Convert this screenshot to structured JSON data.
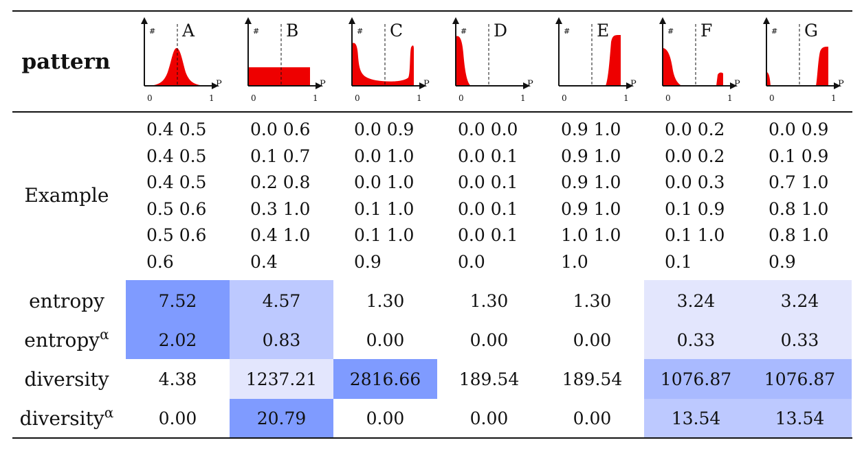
{
  "table": {
    "corner_label": "pattern",
    "axis": {
      "y_label": "#",
      "x_label": "P",
      "x_min": "0",
      "x_max": "1"
    },
    "patterns": [
      {
        "letter": "A",
        "shape": "centered peak"
      },
      {
        "letter": "B",
        "shape": "uniform"
      },
      {
        "letter": "C",
        "shape": "u-shape"
      },
      {
        "letter": "D",
        "shape": "low"
      },
      {
        "letter": "E",
        "shape": "high"
      },
      {
        "letter": "F",
        "shape": "mostly low"
      },
      {
        "letter": "G",
        "shape": "mostly high"
      }
    ],
    "example_label": "Example",
    "examples": [
      [
        "0.4 0.5",
        "0.4 0.5",
        "0.4 0.5",
        "0.5 0.6",
        "0.5 0.6",
        "0.6"
      ],
      [
        "0.0 0.6",
        "0.1 0.7",
        "0.2 0.8",
        "0.3 1.0",
        "0.4 1.0",
        "0.4"
      ],
      [
        "0.0 0.9",
        "0.0 1.0",
        "0.0 1.0",
        "0.1 1.0",
        "0.1 1.0",
        "0.9"
      ],
      [
        "0.0 0.0",
        "0.0 0.1",
        "0.0 0.1",
        "0.0 0.1",
        "0.0 0.1",
        "0.0"
      ],
      [
        "0.9 1.0",
        "0.9 1.0",
        "0.9 1.0",
        "0.9 1.0",
        "1.0 1.0",
        "1.0"
      ],
      [
        "0.0 0.2",
        "0.0 0.2",
        "0.0 0.3",
        "0.1 0.9",
        "0.1 1.0",
        "0.1"
      ],
      [
        "0.0 0.9",
        "0.1 0.9",
        "0.7 1.0",
        "0.8 1.0",
        "0.8 1.0",
        "0.9"
      ]
    ],
    "metrics": [
      {
        "name": "entropy",
        "superscript": "",
        "values": [
          "7.52",
          "4.57",
          "1.30",
          "1.30",
          "1.30",
          "3.24",
          "3.24"
        ]
      },
      {
        "name": "entropy",
        "superscript": "α",
        "values": [
          "2.02",
          "0.83",
          "0.00",
          "0.00",
          "0.00",
          "0.33",
          "0.33"
        ]
      },
      {
        "name": "diversity",
        "superscript": "",
        "values": [
          "4.38",
          "1237.21",
          "2816.66",
          "189.54",
          "189.54",
          "1076.87",
          "1076.87"
        ]
      },
      {
        "name": "diversity",
        "superscript": "α",
        "values": [
          "0.00",
          "20.79",
          "0.00",
          "0.00",
          "0.00",
          "13.54",
          "13.54"
        ]
      }
    ]
  },
  "colors": {
    "curve_fill": "#ee0000",
    "shade_strong": "#7f9bff",
    "shade_medium": "#bdc9ff",
    "shade_light": "#e3e6fd"
  }
}
